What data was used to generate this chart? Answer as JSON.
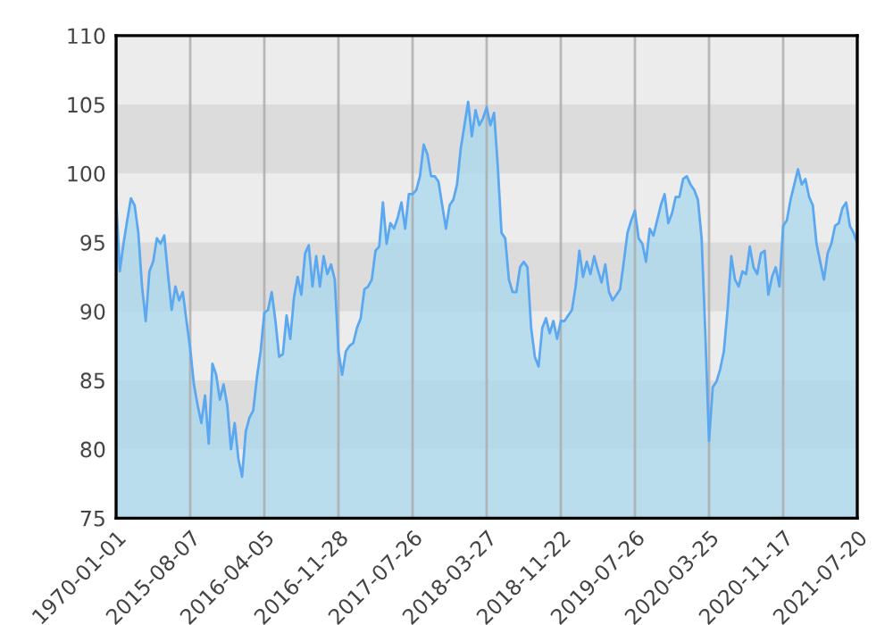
{
  "chart_data": {
    "type": "area",
    "categories": [
      "1970-01-01",
      null,
      null,
      null,
      null,
      null,
      null,
      null,
      null,
      null,
      null,
      null,
      null,
      null,
      null,
      null,
      null,
      null,
      null,
      null,
      "2015-08-07",
      null,
      null,
      null,
      null,
      null,
      null,
      null,
      null,
      null,
      null,
      null,
      null,
      null,
      null,
      null,
      null,
      null,
      null,
      null,
      "2016-04-05",
      null,
      null,
      null,
      null,
      null,
      null,
      null,
      null,
      null,
      null,
      null,
      null,
      null,
      null,
      null,
      null,
      null,
      null,
      null,
      "2016-11-28",
      null,
      null,
      null,
      null,
      null,
      null,
      null,
      null,
      null,
      null,
      null,
      null,
      null,
      null,
      null,
      null,
      null,
      null,
      null,
      "2017-07-26",
      null,
      null,
      null,
      null,
      null,
      null,
      null,
      null,
      null,
      null,
      null,
      null,
      null,
      null,
      null,
      null,
      null,
      null,
      null,
      "2018-03-27",
      null,
      null,
      null,
      null,
      null,
      null,
      null,
      null,
      null,
      null,
      null,
      null,
      null,
      null,
      null,
      null,
      null,
      null,
      null,
      "2018-11-22",
      null,
      null,
      null,
      null,
      null,
      null,
      null,
      null,
      null,
      null,
      null,
      null,
      null,
      null,
      null,
      null,
      null,
      null,
      null,
      "2019-07-26",
      null,
      null,
      null,
      null,
      null,
      null,
      null,
      null,
      null,
      null,
      null,
      null,
      null,
      null,
      null,
      null,
      null,
      null,
      null,
      "2020-03-25",
      null,
      null,
      null,
      null,
      null,
      null,
      null,
      null,
      null,
      null,
      null,
      null,
      null,
      null,
      null,
      null,
      null,
      null,
      null,
      "2020-11-17",
      null,
      null,
      null,
      null,
      null,
      null,
      null,
      null,
      null,
      null,
      null,
      null,
      null,
      null,
      null,
      null,
      null,
      null,
      null,
      "2021-07-20"
    ],
    "ylim": [
      75,
      110
    ],
    "yticks": [
      75,
      80,
      85,
      90,
      95,
      100,
      105,
      110
    ],
    "grid": "x",
    "bands": [
      {
        "axis": "y",
        "from": 80,
        "to": 85,
        "color": "#dcdcdc"
      },
      {
        "axis": "y",
        "from": 90,
        "to": 95,
        "color": "#dcdcdc"
      },
      {
        "axis": "y",
        "from": 100,
        "to": 105,
        "color": "#dcdcdc"
      }
    ],
    "series": [
      {
        "color": "#5ba8f0",
        "values": [
          98.2,
          92.9,
          94.9,
          96.6,
          98.2,
          97.7,
          95.7,
          91.8,
          89.3,
          92.9,
          93.6,
          95.3,
          94.9,
          95.5,
          92.7,
          90.1,
          91.8,
          90.8,
          91.4,
          89.3,
          87.3,
          84.7,
          83.2,
          81.9,
          83.9,
          80.4,
          86.2,
          85.4,
          83.6,
          84.7,
          83.2,
          80.0,
          81.9,
          79.3,
          78.0,
          81.3,
          82.3,
          82.8,
          85.2,
          87.1,
          89.9,
          90.1,
          91.4,
          89.3,
          86.7,
          86.9,
          89.7,
          88.0,
          91.0,
          92.5,
          91.2,
          94.2,
          94.8,
          91.8,
          94.0,
          91.8,
          94.0,
          92.7,
          93.4,
          92.3,
          87.1,
          85.4,
          87.1,
          87.5,
          87.7,
          88.8,
          89.5,
          91.6,
          91.8,
          92.3,
          94.4,
          94.7,
          97.9,
          94.9,
          96.4,
          96.0,
          96.8,
          97.9,
          96.0,
          98.5,
          98.5,
          98.8,
          99.8,
          102.1,
          101.4,
          99.8,
          99.8,
          99.4,
          97.7,
          96.0,
          97.7,
          98.1,
          99.2,
          101.8,
          103.5,
          105.2,
          102.7,
          104.6,
          103.5,
          104.0,
          104.8,
          103.5,
          104.4,
          100.5,
          95.7,
          95.3,
          92.3,
          91.4,
          91.4,
          93.2,
          93.6,
          93.2,
          88.8,
          86.7,
          86.0,
          88.8,
          89.5,
          88.4,
          89.3,
          88.0,
          89.3,
          89.3,
          89.7,
          90.1,
          91.8,
          94.4,
          92.5,
          93.6,
          92.7,
          94.0,
          93.0,
          92.1,
          93.4,
          91.4,
          90.8,
          91.2,
          91.6,
          93.6,
          95.7,
          96.6,
          97.3,
          95.3,
          94.9,
          93.6,
          96.0,
          95.5,
          96.6,
          97.7,
          98.5,
          96.4,
          97.1,
          98.3,
          98.3,
          99.6,
          99.8,
          99.2,
          98.8,
          98.1,
          95.3,
          88.4,
          80.6,
          84.5,
          84.9,
          85.8,
          87.1,
          90.1,
          94.0,
          92.3,
          91.8,
          92.9,
          92.7,
          94.7,
          93.2,
          92.7,
          94.2,
          94.4,
          91.2,
          92.5,
          93.2,
          91.8,
          96.2,
          96.6,
          98.1,
          99.2,
          100.3,
          99.2,
          99.6,
          98.3,
          97.7,
          94.9,
          93.6,
          92.3,
          94.2,
          94.9,
          96.2,
          96.4,
          97.5,
          97.9,
          96.2,
          95.7,
          94.9
        ]
      }
    ]
  }
}
